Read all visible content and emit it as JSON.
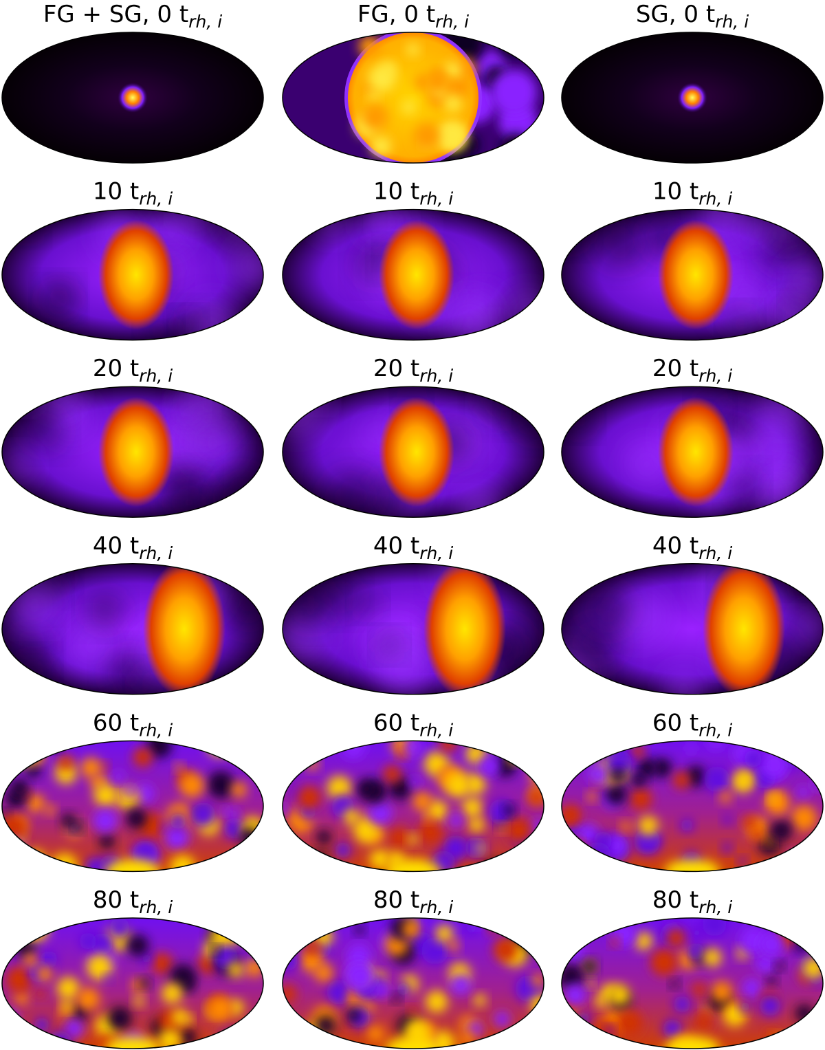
{
  "panels": [
    [
      {
        "title": "FG + SG, 0 t",
        "subscript": "rh, i"
      },
      {
        "title": "FG, 0 t",
        "subscript": "rh, i"
      },
      {
        "title": "SG, 0 t",
        "subscript": "rh, i"
      }
    ],
    [
      {
        "title": "10 t",
        "subscript": "rh, i"
      },
      {
        "title": "10 t",
        "subscript": "rh, i"
      },
      {
        "title": "10 t",
        "subscript": "rh, i"
      }
    ],
    [
      {
        "title": "20 t",
        "subscript": "rh, i"
      },
      {
        "title": "20 t",
        "subscript": "rh, i"
      },
      {
        "title": "20 t",
        "subscript": "rh, i"
      }
    ],
    [
      {
        "title": "40 t",
        "subscript": "rh, i"
      },
      {
        "title": "40 t",
        "subscript": "rh, i"
      },
      {
        "title": "40 t",
        "subscript": "rh, i"
      }
    ],
    [
      {
        "title": "60 t",
        "subscript": "rh, i"
      },
      {
        "title": "60 t",
        "subscript": "rh, i"
      },
      {
        "title": "60 t",
        "subscript": "rh, i"
      }
    ],
    [
      {
        "title": "80 t",
        "subscript": "rh, i"
      },
      {
        "title": "80 t",
        "subscript": "rh, i"
      },
      {
        "title": "80 t",
        "subscript": "rh, i"
      }
    ]
  ]
}
